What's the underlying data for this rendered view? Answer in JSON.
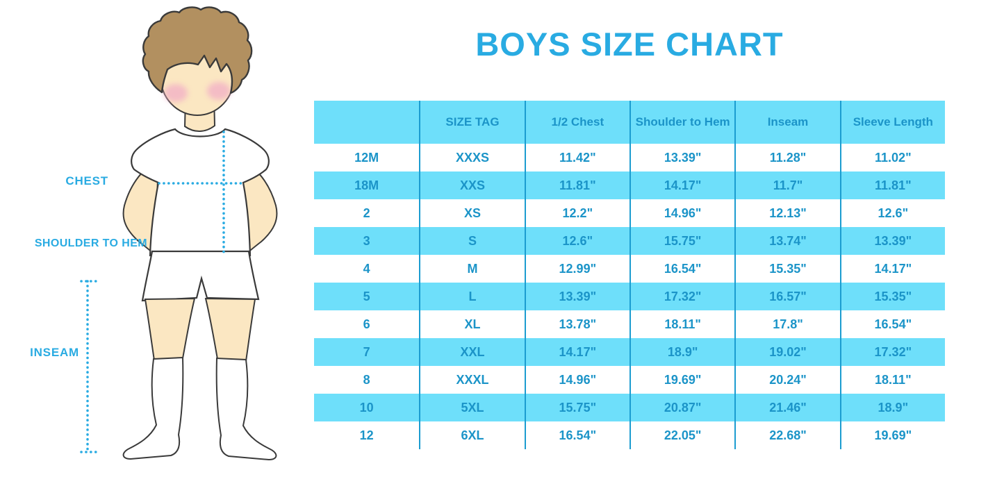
{
  "title": "BOYS SIZE CHART",
  "accent_color": "#29ABE2",
  "figure": {
    "chest_label": "CHEST",
    "shoulder_to_hem_label": "SHOULDER TO HEM",
    "inseam_label": "INSEAM",
    "illustration": "boy-standing-in-white-tshirt-shorts-and-socks-with-dotted-measurement-lines"
  },
  "chart_data": {
    "type": "table",
    "title": "BOYS SIZE CHART",
    "columns": [
      "",
      "SIZE TAG",
      "1/2 Chest",
      "Shoulder to Hem",
      "Inseam",
      "Sleeve Length"
    ],
    "rows": [
      [
        "12M",
        "XXXS",
        "11.42\"",
        "13.39\"",
        "11.28\"",
        "11.02\""
      ],
      [
        "18M",
        "XXS",
        "11.81\"",
        "14.17\"",
        "11.7\"",
        "11.81\""
      ],
      [
        "2",
        "XS",
        "12.2\"",
        "14.96\"",
        "12.13\"",
        "12.6\""
      ],
      [
        "3",
        "S",
        "12.6\"",
        "15.75\"",
        "13.74\"",
        "13.39\""
      ],
      [
        "4",
        "M",
        "12.99\"",
        "16.54\"",
        "15.35\"",
        "14.17\""
      ],
      [
        "5",
        "L",
        "13.39\"",
        "17.32\"",
        "16.57\"",
        "15.35\""
      ],
      [
        "6",
        "XL",
        "13.78\"",
        "18.11\"",
        "17.8\"",
        "16.54\""
      ],
      [
        "7",
        "XXL",
        "14.17\"",
        "18.9\"",
        "19.02\"",
        "17.32\""
      ],
      [
        "8",
        "XXXL",
        "14.96\"",
        "19.69\"",
        "20.24\"",
        "18.11\""
      ],
      [
        "10",
        "5XL",
        "15.75\"",
        "20.87\"",
        "21.46\"",
        "18.9\""
      ],
      [
        "12",
        "6XL",
        "16.54\"",
        "22.05\"",
        "22.68\"",
        "19.69\""
      ]
    ],
    "layout": {
      "striped_rows": "header and every second data row filled",
      "stripe_color": "#6EDFFA",
      "divider_color": "#1B9CD0",
      "text_color": "#1B94C8",
      "grid": "vertical dividers only, no horizontal borders"
    }
  }
}
